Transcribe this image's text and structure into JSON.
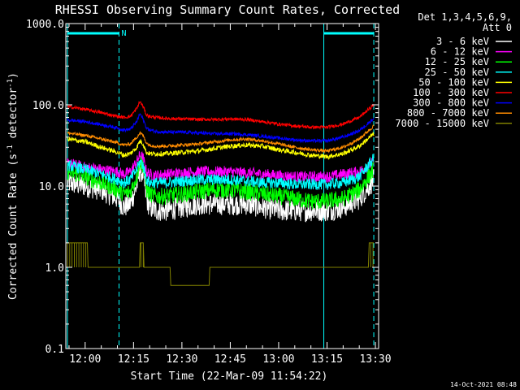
{
  "chart_data": {
    "type": "line",
    "title": "RHESSI Observing Summary Count Rates, Corrected",
    "xlabel": "Start Time (22-Mar-09 11:54:22)",
    "ylabel_main": "Corrected Count Rate (s",
    "ylabel_sup1": "-1",
    "ylabel_mid": " detector",
    "ylabel_sup2": "-1",
    "ylabel_end": ")",
    "yscale": "log",
    "ylim": [
      0.1,
      1000
    ],
    "xlim": [
      -6,
      91
    ],
    "x_unit": "minutes after 12:00",
    "xticks": [
      {
        "label": "12:00",
        "value": 0
      },
      {
        "label": "12:15",
        "value": 15
      },
      {
        "label": "12:30",
        "value": 30
      },
      {
        "label": "12:45",
        "value": 45
      },
      {
        "label": "13:00",
        "value": 60
      },
      {
        "label": "13:15",
        "value": 75
      },
      {
        "label": "13:30",
        "value": 90
      }
    ],
    "yticks": [
      {
        "label": "0.1",
        "value": 0.1
      },
      {
        "label": "1.0",
        "value": 1
      },
      {
        "label": "10.0",
        "value": 10
      },
      {
        "label": "100.0",
        "value": 100
      },
      {
        "label": "1000.0",
        "value": 1000
      }
    ],
    "legend_position": "right",
    "legend_header": [
      "Det 1,3,4,5,6,9,",
      "Att 0"
    ],
    "date_stamp": "14-Oct-2021 08:48",
    "night_marker_label": "N",
    "night_intervals": [
      [
        -5.5,
        10.5
      ],
      [
        74.0,
        89.5
      ]
    ],
    "vlines": [
      {
        "x": -5.5,
        "style": "solid"
      },
      {
        "x": 10.5,
        "style": "dashed"
      },
      {
        "x": 74.0,
        "style": "solid"
      },
      {
        "x": 89.5,
        "style": "dashed"
      }
    ],
    "x": [
      -5.5,
      0,
      5,
      10,
      12,
      14,
      16,
      17,
      18,
      19,
      20,
      22,
      25,
      30,
      35,
      40,
      45,
      50,
      55,
      60,
      65,
      70,
      75,
      80,
      85,
      89.5
    ],
    "series": [
      {
        "name": "3 - 6 keV",
        "color": "#ffffff",
        "noise": 0.55,
        "values": [
          11,
          10,
          9,
          7,
          5.5,
          6,
          10,
          16,
          14,
          7,
          5.5,
          5,
          5,
          5.5,
          6,
          6,
          6,
          6,
          5.5,
          5,
          5,
          5,
          5,
          5.5,
          7,
          12
        ]
      },
      {
        "name": "6 - 12 keV",
        "color": "#ff00ff",
        "noise": 0.28,
        "values": [
          19,
          17,
          16,
          15,
          14,
          15,
          20,
          24,
          22,
          15,
          14,
          13.5,
          14,
          14.5,
          15,
          15,
          15,
          14.5,
          14,
          13.5,
          13,
          13,
          13,
          14,
          15,
          20
        ]
      },
      {
        "name": "12 - 25 keV",
        "color": "#00ff00",
        "noise": 0.42,
        "values": [
          15,
          13,
          11,
          9,
          8,
          8.5,
          13,
          20,
          18,
          9,
          8,
          7.5,
          7.5,
          8,
          8.5,
          9,
          9,
          8.5,
          8,
          7.5,
          7,
          6.5,
          6.5,
          7,
          9,
          16
        ]
      },
      {
        "name": "25 - 50 keV",
        "color": "#00ffff",
        "noise": 0.28,
        "values": [
          18,
          16,
          14,
          12,
          11,
          12,
          16,
          20,
          18,
          12,
          11,
          11,
          11,
          11.5,
          12,
          12,
          12,
          11.5,
          11,
          11,
          10.5,
          10.5,
          10.5,
          11,
          13,
          22
        ]
      },
      {
        "name": "50 - 100 keV",
        "color": "#ffff00",
        "noise": 0.12,
        "values": [
          38,
          35,
          30,
          26,
          24,
          25,
          30,
          36,
          33,
          26,
          25,
          25,
          25,
          26,
          27,
          29,
          31,
          32,
          31,
          28,
          26,
          24,
          23,
          25,
          31,
          44
        ]
      },
      {
        "name": "100 - 300 keV",
        "color": "#ff0000",
        "noise": 0.08,
        "values": [
          95,
          88,
          80,
          72,
          70,
          72,
          90,
          110,
          95,
          75,
          72,
          70,
          68,
          67,
          66,
          66,
          67,
          66,
          62,
          58,
          55,
          53,
          53,
          58,
          70,
          100
        ]
      },
      {
        "name": "300 - 800 keV",
        "color": "#0000ff",
        "noise": 0.08,
        "values": [
          65,
          62,
          57,
          52,
          49,
          50,
          62,
          78,
          66,
          52,
          49,
          47,
          46,
          46,
          45,
          44,
          44,
          43,
          41,
          39,
          37,
          36,
          36,
          40,
          48,
          68
        ]
      },
      {
        "name": "800 - 7000 keV",
        "color": "#ff8c00",
        "noise": 0.08,
        "values": [
          45,
          42,
          38,
          34,
          32,
          33,
          40,
          45,
          42,
          34,
          32,
          31,
          31,
          32,
          33,
          35,
          37,
          38,
          36,
          33,
          30,
          28,
          27,
          30,
          38,
          55
        ]
      },
      {
        "name": "7000 - 15000 keV",
        "color": "#808000",
        "noise": 0,
        "values": [
          2,
          2,
          1,
          1,
          1,
          1,
          1,
          2,
          2,
          1,
          1,
          1,
          1,
          0.7,
          0.7,
          1,
          1,
          1,
          1,
          1,
          1,
          1,
          1,
          1,
          1.5,
          2
        ]
      }
    ]
  }
}
